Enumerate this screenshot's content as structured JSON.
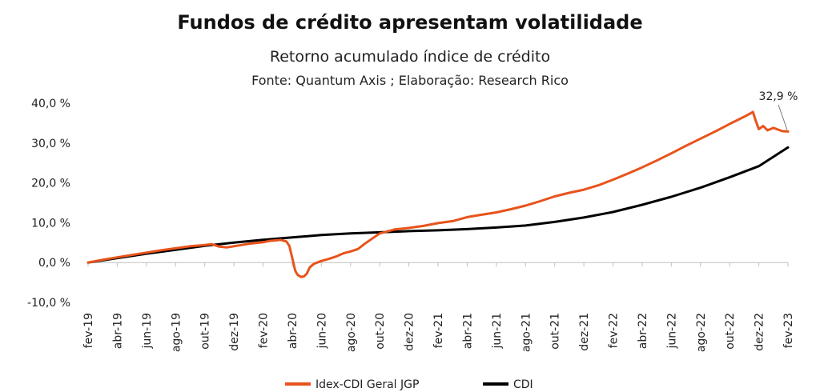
{
  "header": {
    "title": "Fundos de crédito apresentam volatilidade",
    "subtitle": "Retorno acumulado índice de crédito",
    "source": "Fonte: Quantum Axis ; Elaboração: Research Rico"
  },
  "chart_data": {
    "type": "line",
    "title": "Fundos de crédito apresentam volatilidade",
    "subtitle": "Retorno acumulado índice de crédito",
    "xlabel": "",
    "ylabel": "",
    "ylim": [
      -10,
      40
    ],
    "y_ticks": [
      -10,
      0,
      10,
      20,
      30,
      40
    ],
    "y_tick_labels": [
      "-10,0 %",
      "0,0 %",
      "10,0 %",
      "20,0 %",
      "30,0 %",
      "40,0 %"
    ],
    "x_range_months": [
      0,
      48
    ],
    "x_tick_labels": [
      "fev-19",
      "abr-19",
      "jun-19",
      "ago-19",
      "out-19",
      "dez-19",
      "fev-20",
      "abr-20",
      "jun-20",
      "ago-20",
      "out-20",
      "dez-20",
      "fev-21",
      "abr-21",
      "jun-21",
      "ago-21",
      "out-21",
      "dez-21",
      "fev-22",
      "abr-22",
      "jun-22",
      "ago-22",
      "out-22",
      "dez-22",
      "fev-23"
    ],
    "legend_position": "bottom",
    "series": [
      {
        "name": "Idex-CDI Geral JGP",
        "color": "#E8531B",
        "x": [
          0,
          1,
          2,
          3,
          4,
          5,
          6,
          7,
          8,
          8.5,
          9,
          9.5,
          10,
          10.5,
          11,
          11.5,
          12,
          12.4,
          13,
          13.2,
          13.4,
          13.6,
          13.8,
          14,
          14.2,
          14.3,
          14.4,
          14.6,
          14.8,
          15,
          15.2,
          15.5,
          16,
          16.5,
          17,
          17.5,
          18,
          18.5,
          19,
          20,
          21,
          22,
          23,
          24,
          25,
          26,
          27,
          28,
          29,
          30,
          31,
          32,
          33,
          34,
          35,
          36,
          37,
          38,
          39,
          40,
          41,
          42,
          43,
          44,
          45,
          45.6,
          45.8,
          46,
          46.3,
          46.6,
          47,
          47.3,
          47.6,
          48
        ],
        "values": [
          0,
          0.7,
          1.3,
          1.9,
          2.5,
          3.1,
          3.6,
          4.1,
          4.4,
          4.6,
          4.0,
          3.8,
          4.1,
          4.4,
          4.7,
          4.9,
          5.1,
          5.4,
          5.6,
          5.7,
          5.5,
          5.3,
          4.2,
          1.2,
          -2.0,
          -2.7,
          -3.2,
          -3.6,
          -3.5,
          -2.8,
          -1.2,
          -0.3,
          0.4,
          0.9,
          1.5,
          2.3,
          2.8,
          3.4,
          4.8,
          7.3,
          8.3,
          8.7,
          9.2,
          9.9,
          10.4,
          11.4,
          12.0,
          12.6,
          13.4,
          14.3,
          15.4,
          16.6,
          17.5,
          18.3,
          19.4,
          20.8,
          22.3,
          23.9,
          25.6,
          27.4,
          29.3,
          31.1,
          32.9,
          34.8,
          36.6,
          37.8,
          35.5,
          33.5,
          34.3,
          33.2,
          33.8,
          33.4,
          33.0,
          32.9
        ]
      },
      {
        "name": "CDI",
        "color": "#000000",
        "x": [
          0,
          2,
          4,
          6,
          8,
          10,
          12,
          14,
          16,
          18,
          20,
          22,
          24,
          26,
          28,
          30,
          32,
          34,
          36,
          38,
          40,
          42,
          44,
          46,
          48
        ],
        "values": [
          0,
          1.1,
          2.2,
          3.2,
          4.2,
          5.0,
          5.7,
          6.3,
          6.9,
          7.3,
          7.6,
          7.9,
          8.1,
          8.4,
          8.8,
          9.3,
          10.2,
          11.3,
          12.7,
          14.5,
          16.5,
          18.8,
          21.4,
          24.2,
          28.9
        ]
      }
    ],
    "annotations": [
      {
        "text": "32,9 %",
        "x": 48,
        "y": 32.9
      }
    ]
  }
}
